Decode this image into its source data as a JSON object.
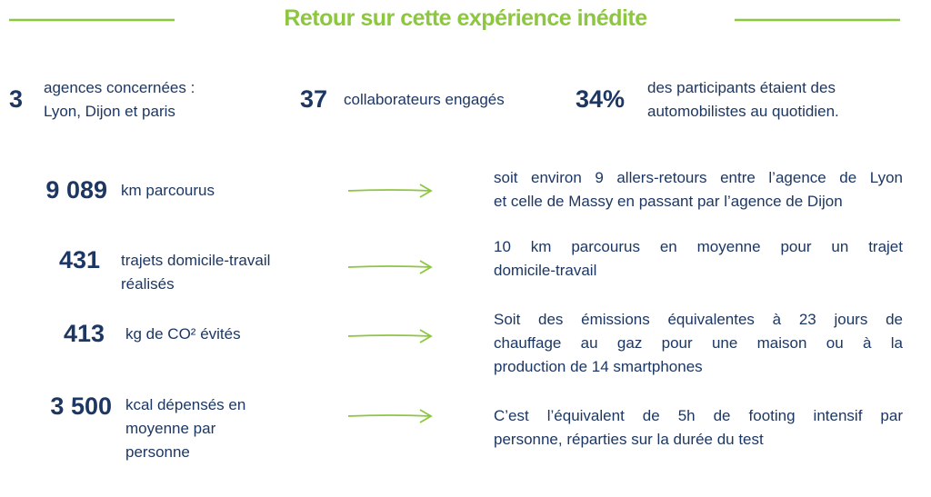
{
  "header": {
    "title": "Retour sur cette expérience inédite"
  },
  "stats": [
    {
      "value": "3",
      "label": [
        "agences concernées :",
        "Lyon, Dijon et paris"
      ]
    },
    {
      "value": "37",
      "label": [
        "collaborateurs engagés"
      ]
    },
    {
      "value": "34%",
      "label": [
        "des participants étaient des",
        "automobilistes au quotidien."
      ]
    }
  ],
  "rows": [
    {
      "value": "9 089",
      "label": [
        "km parcourus"
      ],
      "description": [
        " soit environ 9 allers-retours entre l’agence de Lyon",
        "et celle de Massy en passant par l’agence de Dijon"
      ]
    },
    {
      "value": "431",
      "label": [
        "trajets domicile-travail",
        "réalisés"
      ],
      "description": [
        "10 km parcourus en moyenne pour un trajet",
        "domicile-travail"
      ]
    },
    {
      "value": "413",
      "label": [
        "kg de CO² évités"
      ],
      "description": [
        "Soit des émissions équivalentes à 23 jours de",
        "chauffage au gaz pour une maison ou à la",
        "production de 14 smartphones"
      ]
    },
    {
      "value": "3 500",
      "label": [
        "kcal dépensés en",
        "moyenne par",
        "personne"
      ],
      "description": [
        "C’est l’équivalent de 5h de footing intensif par",
        "personne, réparties sur la durée du test"
      ]
    }
  ]
}
